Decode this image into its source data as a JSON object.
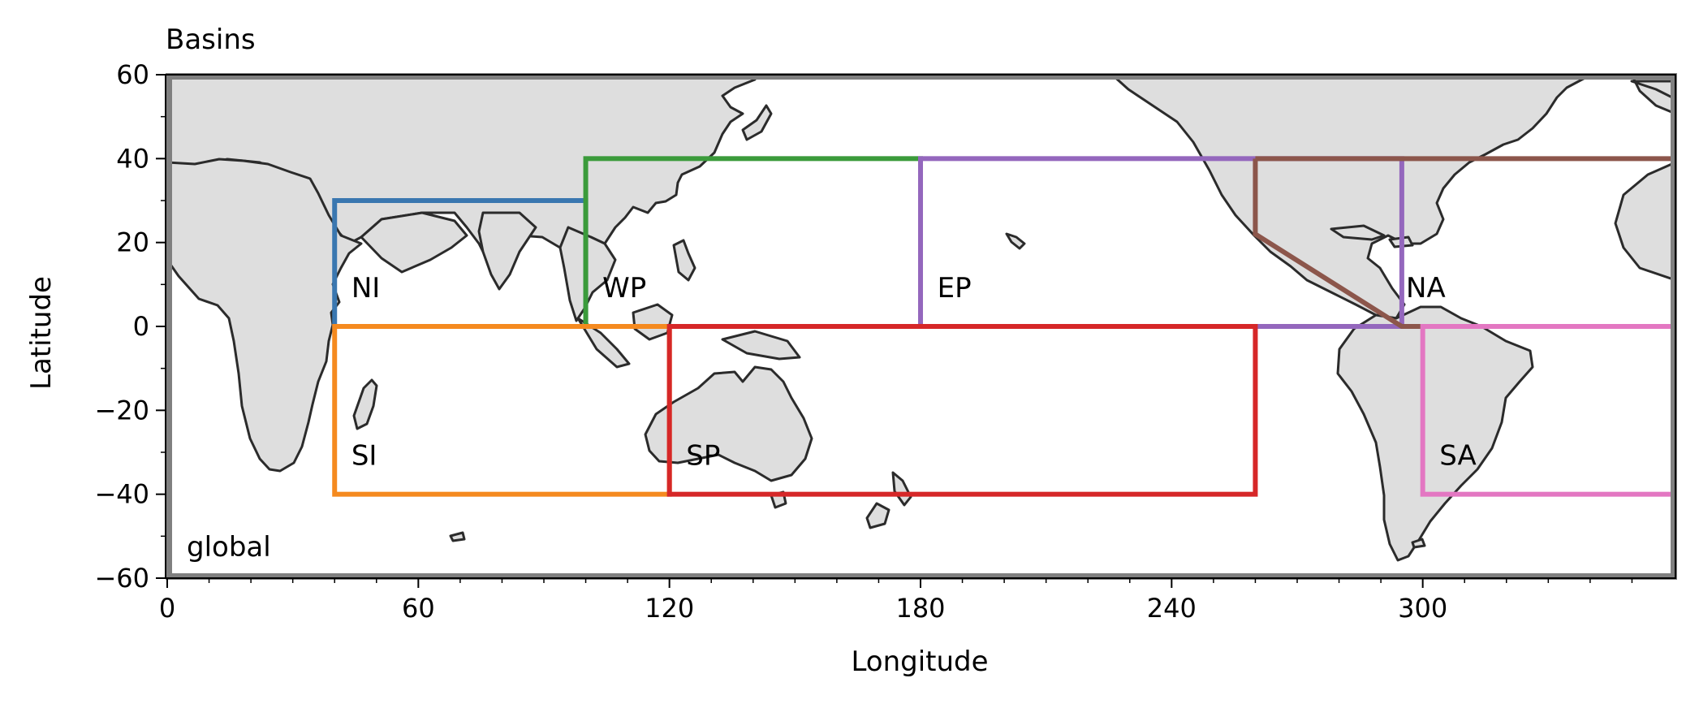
{
  "title": "Basins",
  "xlabel": "Longitude",
  "ylabel": "Latitude",
  "x_ticks": [
    "0",
    "60",
    "120",
    "180",
    "240",
    "300"
  ],
  "y_ticks": [
    "60",
    "40",
    "20",
    "0",
    "−20",
    "−40",
    "−60"
  ],
  "global_label": "global",
  "colors": {
    "frame": "#808080",
    "land": "#dedede",
    "coast": "#2b2b2b"
  },
  "chart_data": {
    "type": "map",
    "projection": "plate-carree",
    "xlim": [
      0,
      360
    ],
    "ylim": [
      -60,
      60
    ],
    "x_tick_values": [
      0,
      60,
      120,
      180,
      240,
      300
    ],
    "y_tick_values": [
      60,
      40,
      20,
      0,
      -20,
      -40,
      -60
    ],
    "global_region": {
      "name": "global",
      "lon": [
        0,
        360
      ],
      "lat": [
        -60,
        60
      ],
      "color": "#808080"
    },
    "basins": [
      {
        "name": "NI",
        "color": "#3a77b0",
        "lon_min": 40,
        "lon_max": 100,
        "lat_min": 0,
        "lat_max": 30
      },
      {
        "name": "WP",
        "color": "#3b9b3b",
        "lon_min": 100,
        "lon_max": 180,
        "lat_min": 0,
        "lat_max": 40
      },
      {
        "name": "EP",
        "color": "#9467bd",
        "lon_min": 180,
        "lon_max": 295,
        "lat_min": 0,
        "lat_max": 40
      },
      {
        "name": "NA",
        "color": "#8c564b",
        "polygon": [
          [
            260,
            40
          ],
          [
            360,
            40
          ],
          [
            360,
            0
          ],
          [
            295,
            0
          ],
          [
            260,
            22
          ],
          [
            260,
            40
          ]
        ]
      },
      {
        "name": "SI",
        "color": "#f58a1f",
        "lon_min": 40,
        "lon_max": 120,
        "lat_min": -40,
        "lat_max": 0
      },
      {
        "name": "SP",
        "color": "#d62728",
        "lon_min": 120,
        "lon_max": 260,
        "lat_min": -40,
        "lat_max": 0
      },
      {
        "name": "SA",
        "color": "#e377c2",
        "lon_min": 300,
        "lon_max": 360,
        "lat_min": -40,
        "lat_max": 0
      }
    ],
    "labels": [
      {
        "text": "NI",
        "lon": 44,
        "lat": 7
      },
      {
        "text": "WP",
        "lon": 104,
        "lat": 7
      },
      {
        "text": "EP",
        "lon": 184,
        "lat": 7
      },
      {
        "text": "NA",
        "lon": 296,
        "lat": 7
      },
      {
        "text": "SI",
        "lon": 44,
        "lat": -33
      },
      {
        "text": "SP",
        "lon": 124,
        "lat": -33
      },
      {
        "text": "SA",
        "lon": 304,
        "lat": -33
      }
    ]
  }
}
